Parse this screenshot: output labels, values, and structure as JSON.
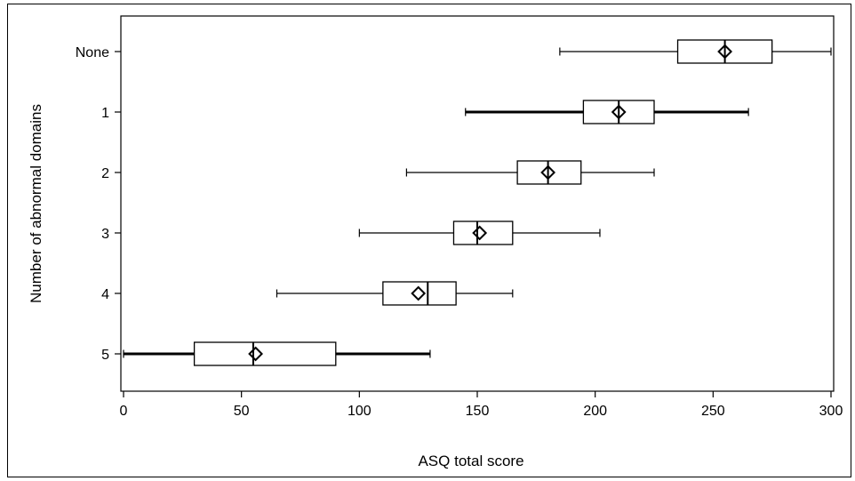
{
  "chart_data": {
    "type": "boxplot",
    "orientation": "horizontal",
    "title": "",
    "xlabel": "ASQ total score",
    "ylabel": "Number of abnormal domains",
    "xlim": [
      0,
      300
    ],
    "xticks": [
      0,
      50,
      100,
      150,
      200,
      250,
      300
    ],
    "grid": false,
    "categories": [
      "None",
      "1",
      "2",
      "3",
      "4",
      "5"
    ],
    "series": [
      {
        "category": "None",
        "min": 185,
        "q1": 235,
        "median": 255,
        "q3": 275,
        "max": 300,
        "mean": 255
      },
      {
        "category": "1",
        "min": 145,
        "q1": 195,
        "median": 210,
        "q3": 225,
        "max": 265,
        "mean": 210
      },
      {
        "category": "2",
        "min": 120,
        "q1": 167,
        "median": 180,
        "q3": 194,
        "max": 225,
        "mean": 180
      },
      {
        "category": "3",
        "min": 100,
        "q1": 140,
        "median": 150,
        "q3": 165,
        "max": 202,
        "mean": 151
      },
      {
        "category": "4",
        "min": 65,
        "q1": 110,
        "median": 129,
        "q3": 141,
        "max": 165,
        "mean": 125
      },
      {
        "category": "5",
        "min": 0,
        "q1": 30,
        "median": 55,
        "q3": 90,
        "max": 130,
        "mean": 56
      }
    ],
    "emphasized_whiskers": [
      "1",
      "5"
    ],
    "colors": {
      "stroke": "#000000",
      "box_fill": "#ffffff"
    }
  }
}
